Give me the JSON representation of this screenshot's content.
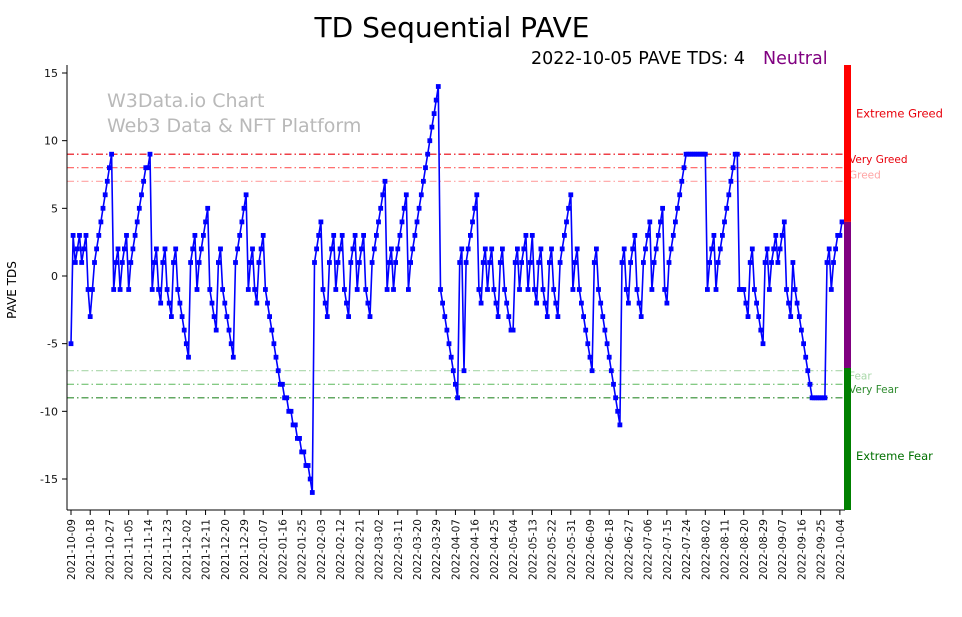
{
  "page": {
    "title": "TD Sequential PAVE",
    "subtitle_left": "2022-10-05 PAVE TDS: 4",
    "subtitle_status": "Neutral",
    "status_color": "#800080"
  },
  "watermark": {
    "line1": "W3Data.io Chart",
    "line2": "Web3 Data & NFT Platform"
  },
  "current": {
    "date": "2022-10-05",
    "tds": 4,
    "sentiment": "Neutral"
  },
  "chart_data": {
    "type": "line",
    "title": "TD Sequential PAVE",
    "xlabel": "",
    "ylabel": "PAVE TDS",
    "ylim": [
      -17.3,
      15.6
    ],
    "grid": false,
    "legend": "none",
    "line_color": "#0000ff",
    "marker": "square",
    "start_date": "2021-10-09",
    "end_date": "2022-10-05",
    "x_tick_interval_days": 9,
    "y_ticks": [
      15,
      10,
      5,
      0,
      -5,
      -10,
      -15
    ],
    "x_tick_labels": [
      "2021-10-09",
      "2021-10-18",
      "2021-10-27",
      "2021-11-05",
      "2021-11-14",
      "2021-11-23",
      "2021-12-02",
      "2021-12-11",
      "2021-12-20",
      "2021-12-29",
      "2022-01-07",
      "2022-01-16",
      "2022-01-25",
      "2022-02-03",
      "2022-02-12",
      "2022-02-21",
      "2022-03-02",
      "2022-03-11",
      "2022-03-20",
      "2022-03-29",
      "2022-04-07",
      "2022-04-16",
      "2022-04-25",
      "2022-05-04",
      "2022-05-13",
      "2022-05-22",
      "2022-05-31",
      "2022-06-09",
      "2022-06-18",
      "2022-06-27",
      "2022-07-06",
      "2022-07-15",
      "2022-07-24",
      "2022-08-02",
      "2022-08-11",
      "2022-08-20",
      "2022-08-29",
      "2022-09-07",
      "2022-09-16",
      "2022-09-25",
      "2022-10-04"
    ],
    "values": [
      -5,
      3,
      1,
      2,
      3,
      1,
      2,
      3,
      -1,
      -3,
      -1,
      1,
      2,
      3,
      4,
      5,
      6,
      7,
      8,
      9,
      -1,
      1,
      2,
      -1,
      1,
      2,
      3,
      -1,
      1,
      2,
      3,
      4,
      5,
      6,
      7,
      8,
      8,
      9,
      -1,
      1,
      2,
      -1,
      -2,
      1,
      2,
      -1,
      -2,
      -3,
      1,
      2,
      -1,
      -2,
      -3,
      -4,
      -5,
      -6,
      1,
      2,
      3,
      -1,
      1,
      2,
      3,
      4,
      5,
      -1,
      -2,
      -3,
      -4,
      1,
      2,
      -1,
      -2,
      -3,
      -4,
      -5,
      -6,
      1,
      2,
      3,
      4,
      5,
      6,
      -1,
      1,
      2,
      -1,
      -2,
      1,
      2,
      3,
      -1,
      -2,
      -3,
      -4,
      -5,
      -6,
      -7,
      -8,
      -8,
      -9,
      -9,
      -10,
      -10,
      -11,
      -11,
      -12,
      -12,
      -13,
      -13,
      -14,
      -14,
      -15,
      -16,
      1,
      2,
      3,
      4,
      -1,
      -2,
      -3,
      1,
      2,
      3,
      -1,
      1,
      2,
      3,
      -1,
      -2,
      -3,
      1,
      2,
      3,
      -1,
      1,
      2,
      3,
      -1,
      -2,
      -3,
      1,
      2,
      3,
      4,
      5,
      6,
      7,
      -1,
      1,
      2,
      -1,
      1,
      2,
      3,
      4,
      5,
      6,
      -1,
      1,
      2,
      3,
      4,
      5,
      6,
      7,
      8,
      9,
      10,
      11,
      12,
      13,
      14,
      -1,
      -2,
      -3,
      -4,
      -5,
      -6,
      -7,
      -8,
      -9,
      1,
      2,
      -7,
      1,
      2,
      3,
      4,
      5,
      6,
      -1,
      -2,
      1,
      2,
      -1,
      1,
      2,
      -1,
      -2,
      -3,
      1,
      2,
      -1,
      -2,
      -3,
      -4,
      -4,
      1,
      2,
      -1,
      1,
      2,
      3,
      -1,
      1,
      3,
      -1,
      -2,
      1,
      2,
      -1,
      -2,
      -3,
      1,
      2,
      -1,
      -2,
      -3,
      1,
      2,
      3,
      4,
      5,
      6,
      -1,
      1,
      2,
      -1,
      -2,
      -3,
      -4,
      -5,
      -6,
      -7,
      1,
      2,
      -1,
      -2,
      -3,
      -4,
      -5,
      -6,
      -7,
      -8,
      -9,
      -10,
      -11,
      1,
      2,
      -1,
      -2,
      1,
      2,
      3,
      -1,
      -2,
      -3,
      1,
      2,
      3,
      4,
      -1,
      1,
      2,
      3,
      4,
      5,
      -1,
      -2,
      1,
      2,
      3,
      4,
      5,
      6,
      7,
      8,
      9,
      9,
      9,
      9,
      9,
      9,
      9,
      9,
      9,
      9,
      -1,
      1,
      2,
      3,
      -1,
      1,
      2,
      3,
      4,
      5,
      6,
      7,
      8,
      9,
      9,
      -1,
      -1,
      -1,
      -2,
      -3,
      1,
      2,
      -1,
      -2,
      -3,
      -4,
      -5,
      1,
      2,
      -1,
      1,
      2,
      3,
      1,
      2,
      3,
      4,
      -1,
      -2,
      -3,
      1,
      -1,
      -2,
      -3,
      -4,
      -5,
      -6,
      -7,
      -8,
      -9,
      -9,
      -9,
      -9,
      -9,
      -9,
      -9,
      1,
      2,
      -1,
      1,
      2,
      3,
      3,
      4
    ],
    "thresholds": [
      {
        "y": 9,
        "color": "#e8000b",
        "label": "Very Greed"
      },
      {
        "y": 8,
        "color": "#ff5c5c",
        "label": ""
      },
      {
        "y": 7,
        "color": "#ffa3a3",
        "label": "Greed"
      },
      {
        "y": -7,
        "color": "#a9d8a9",
        "label": "Fear"
      },
      {
        "y": -8,
        "color": "#5cb85c",
        "label": ""
      },
      {
        "y": -9,
        "color": "#2e8b2e",
        "label": "Very Fear"
      }
    ],
    "side_labels": [
      {
        "text": "Extreme Greed",
        "color": "#e8000b",
        "y_value": 12
      },
      {
        "text": "Extreme Fear",
        "color": "#007000",
        "y_value": -13.3
      }
    ],
    "sentiment_bar": {
      "segments": [
        {
          "from": 15.6,
          "to": 4,
          "color": "#ff0000"
        },
        {
          "from": 4,
          "to": -6.8,
          "color": "#800080"
        },
        {
          "from": -6.8,
          "to": -17.3,
          "color": "#008000"
        }
      ]
    }
  }
}
